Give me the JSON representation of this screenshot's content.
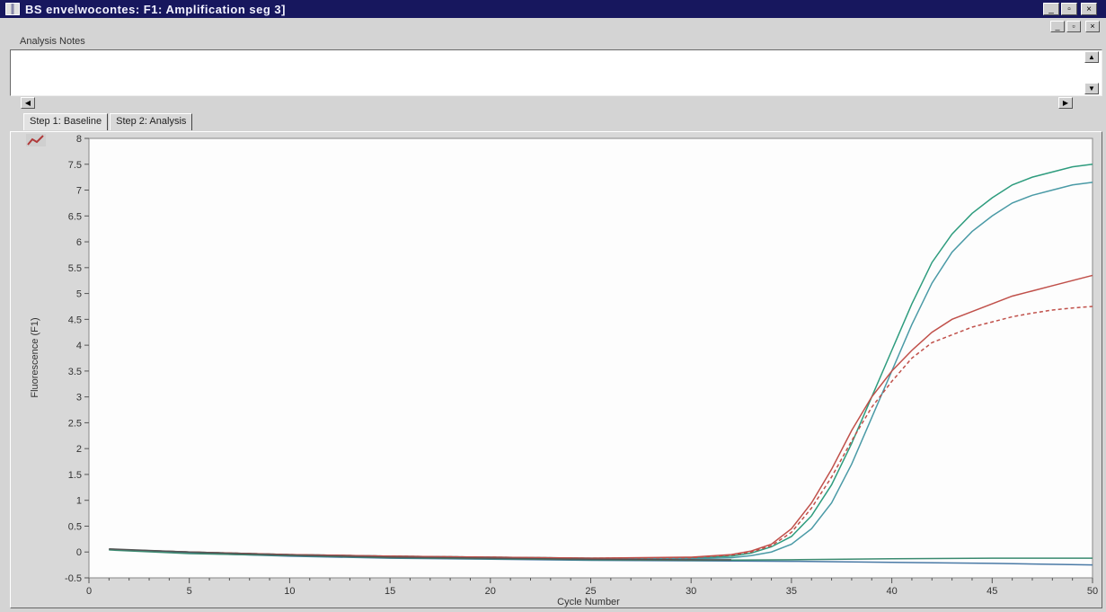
{
  "window": {
    "title": "BS envelwocontes: F1: Amplification seg 3]",
    "controls": {
      "minimize": "_",
      "restore": "▫",
      "close": "×"
    }
  },
  "notes": {
    "label": "Analysis Notes",
    "value": ""
  },
  "tabs": [
    {
      "label": "Step 1: Baseline",
      "active": true
    },
    {
      "label": "Step 2: Analysis",
      "active": false
    }
  ],
  "chart_data": {
    "type": "line",
    "xlabel": "Cycle Number",
    "ylabel": "Fluorescence (F1)",
    "xlim": [
      0,
      50
    ],
    "ylim": [
      -0.5,
      8
    ],
    "xticks": [
      0,
      5,
      10,
      15,
      20,
      25,
      30,
      35,
      40,
      45,
      50
    ],
    "yticks": [
      -0.5,
      0,
      0.5,
      1,
      1.5,
      2,
      2.5,
      3,
      3.5,
      4,
      4.5,
      5,
      5.5,
      6,
      6.5,
      7,
      7.5,
      8
    ],
    "grid": false,
    "series": [
      {
        "color": "#2e9c7e",
        "dashed": false,
        "x": [
          1,
          5,
          10,
          15,
          20,
          25,
          30,
          32,
          33,
          34,
          35,
          36,
          37,
          38,
          39,
          40,
          41,
          42,
          43,
          44,
          45,
          46,
          47,
          48,
          49,
          50
        ],
        "y": [
          0.05,
          0.0,
          -0.05,
          -0.08,
          -0.1,
          -0.12,
          -0.12,
          -0.08,
          -0.02,
          0.1,
          0.3,
          0.7,
          1.3,
          2.1,
          3.0,
          3.9,
          4.8,
          5.6,
          6.15,
          6.55,
          6.85,
          7.1,
          7.25,
          7.35,
          7.45,
          7.5
        ]
      },
      {
        "color": "#4a9aa6",
        "dashed": false,
        "x": [
          1,
          5,
          10,
          15,
          20,
          25,
          30,
          32,
          33,
          34,
          35,
          36,
          37,
          38,
          39,
          40,
          41,
          42,
          43,
          44,
          45,
          46,
          47,
          48,
          49,
          50
        ],
        "y": [
          0.05,
          0.0,
          -0.05,
          -0.08,
          -0.1,
          -0.12,
          -0.13,
          -0.11,
          -0.07,
          0.0,
          0.15,
          0.45,
          0.95,
          1.7,
          2.6,
          3.5,
          4.4,
          5.2,
          5.8,
          6.2,
          6.5,
          6.75,
          6.9,
          7.0,
          7.1,
          7.15
        ]
      },
      {
        "color": "#c0504a",
        "dashed": false,
        "x": [
          1,
          5,
          10,
          15,
          20,
          25,
          30,
          32,
          33,
          34,
          35,
          36,
          37,
          38,
          39,
          40,
          41,
          42,
          43,
          44,
          45,
          46,
          47,
          48,
          49,
          50
        ],
        "y": [
          0.05,
          0.0,
          -0.05,
          -0.08,
          -0.1,
          -0.12,
          -0.1,
          -0.05,
          0.02,
          0.15,
          0.45,
          0.95,
          1.6,
          2.35,
          3.0,
          3.5,
          3.9,
          4.25,
          4.5,
          4.65,
          4.8,
          4.95,
          5.05,
          5.15,
          5.25,
          5.35
        ]
      },
      {
        "color": "#c0504a",
        "dashed": true,
        "x": [
          1,
          5,
          10,
          15,
          20,
          25,
          30,
          32,
          33,
          34,
          35,
          36,
          37,
          38,
          39,
          40,
          41,
          42,
          43,
          44,
          45,
          46,
          47,
          48,
          49,
          50
        ],
        "y": [
          0.05,
          0.0,
          -0.05,
          -0.08,
          -0.1,
          -0.12,
          -0.11,
          -0.06,
          0.0,
          0.12,
          0.38,
          0.85,
          1.45,
          2.15,
          2.8,
          3.3,
          3.75,
          4.05,
          4.2,
          4.35,
          4.45,
          4.55,
          4.62,
          4.68,
          4.72,
          4.75
        ]
      },
      {
        "color": "#4a7aa6",
        "dashed": false,
        "x": [
          1,
          5,
          10,
          15,
          20,
          25,
          30,
          35,
          40,
          45,
          50
        ],
        "y": [
          0.05,
          -0.02,
          -0.08,
          -0.12,
          -0.14,
          -0.16,
          -0.17,
          -0.18,
          -0.2,
          -0.22,
          -0.25
        ]
      },
      {
        "color": "#3a8a70",
        "dashed": false,
        "x": [
          1,
          5,
          10,
          15,
          20,
          25,
          30,
          35,
          40,
          45,
          50
        ],
        "y": [
          0.04,
          -0.03,
          -0.07,
          -0.11,
          -0.13,
          -0.15,
          -0.16,
          -0.15,
          -0.13,
          -0.12,
          -0.12
        ]
      },
      {
        "color": "#555555",
        "dashed": false,
        "x": [
          1,
          5,
          10,
          15,
          20,
          25,
          30,
          32
        ],
        "y": [
          0.06,
          0.0,
          -0.06,
          -0.1,
          -0.12,
          -0.14,
          -0.15,
          -0.15
        ]
      }
    ]
  }
}
